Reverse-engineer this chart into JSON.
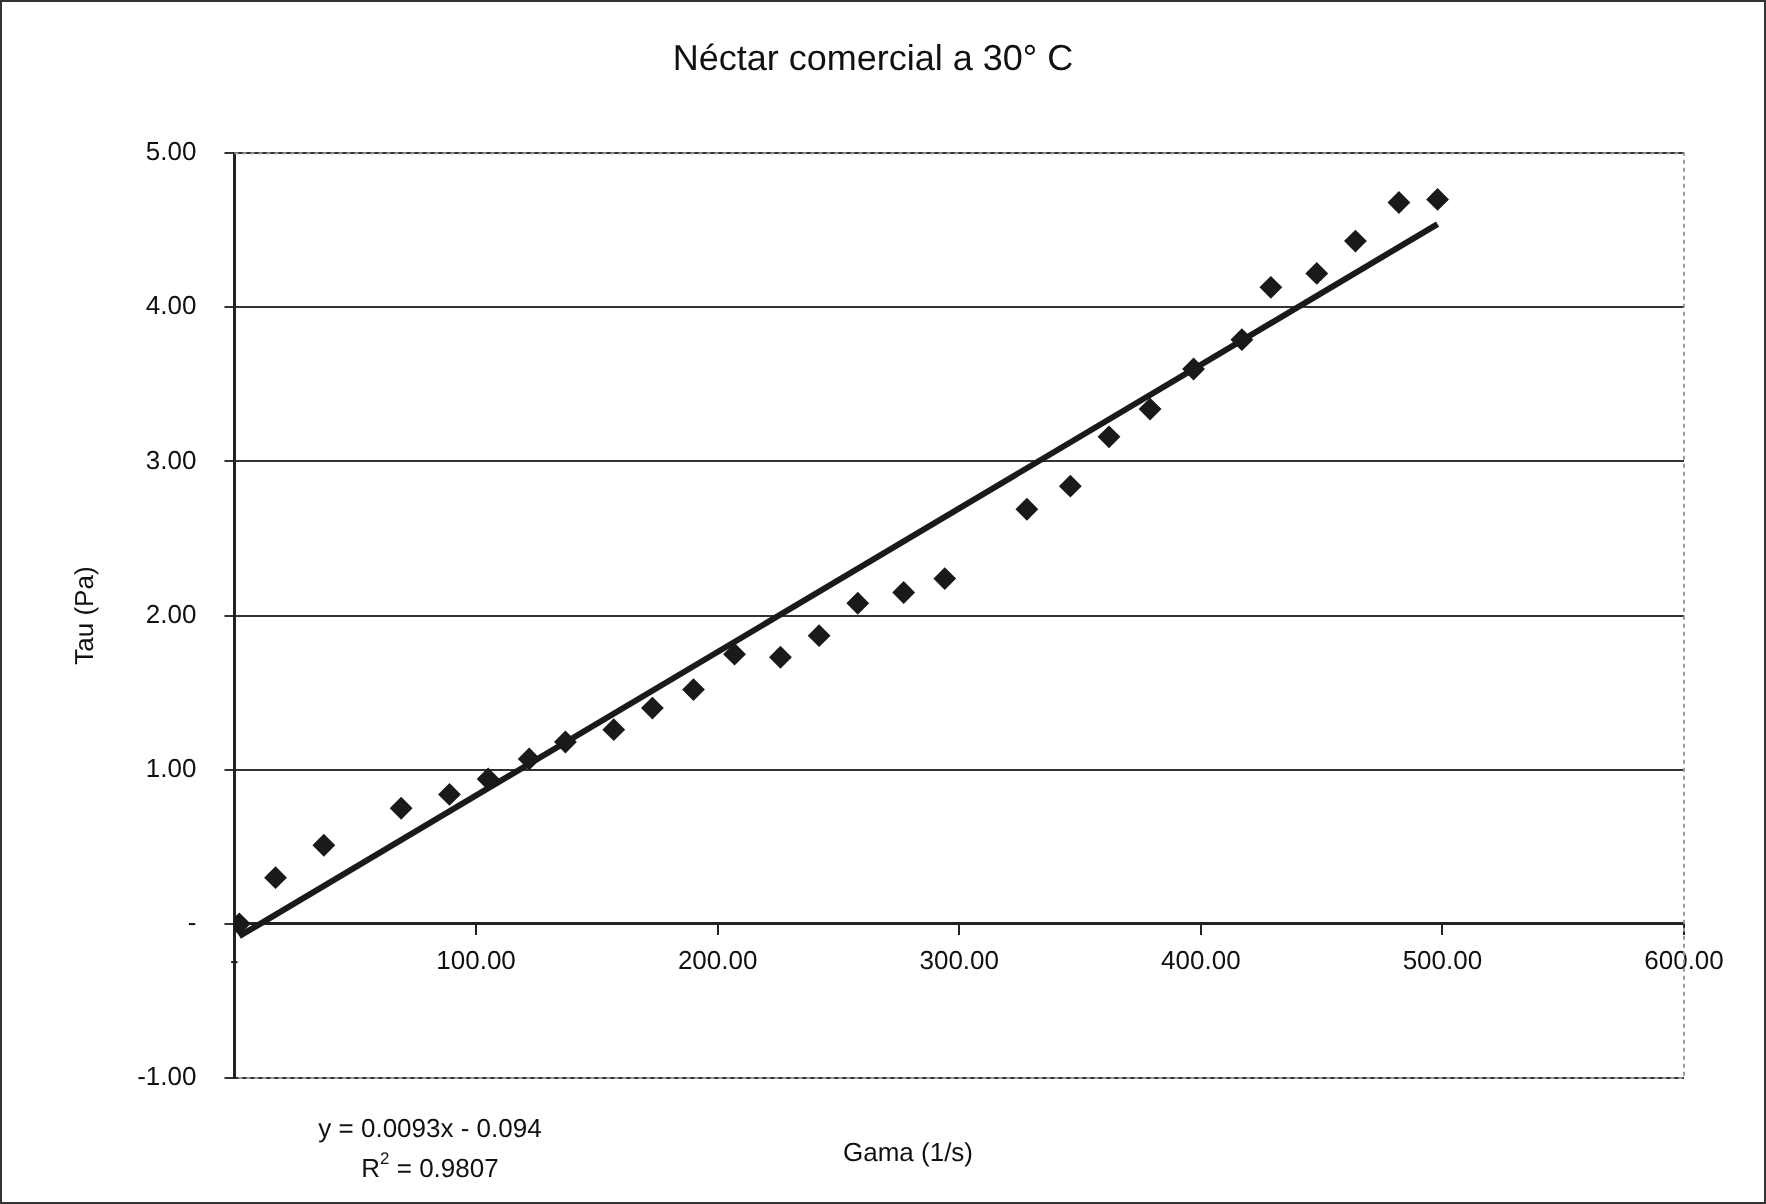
{
  "chart_data": {
    "type": "scatter",
    "title": "Néctar comercial a 30° C",
    "xlabel": "Gama (1/s)",
    "ylabel": "Tau (Pa)",
    "xlim": [
      0,
      600
    ],
    "ylim": [
      -1,
      5
    ],
    "xticks": [
      {
        "value": 0,
        "label": "-"
      },
      {
        "value": 100,
        "label": "100.00"
      },
      {
        "value": 200,
        "label": "200.00"
      },
      {
        "value": 300,
        "label": "300.00"
      },
      {
        "value": 400,
        "label": "400.00"
      },
      {
        "value": 500,
        "label": "500.00"
      },
      {
        "value": 600,
        "label": "600.00"
      }
    ],
    "yticks": [
      {
        "value": -1,
        "label": "-1.00"
      },
      {
        "value": 0,
        "label": "-"
      },
      {
        "value": 1,
        "label": "1.00"
      },
      {
        "value": 2,
        "label": "2.00"
      },
      {
        "value": 3,
        "label": "3.00"
      },
      {
        "value": 4,
        "label": "4.00"
      },
      {
        "value": 5,
        "label": "5.00"
      }
    ],
    "grid": "y",
    "legend": false,
    "marker": "diamond",
    "annotations": [
      "y = 0.0093x - 0.094",
      "R$^{2}$ = 0.9807"
    ],
    "series": [
      {
        "type": "scatter",
        "color": "#1a1a1a",
        "x": [
          2,
          17,
          37,
          69,
          89,
          105,
          122,
          137,
          157,
          173,
          190,
          207,
          226,
          242,
          258,
          277,
          294,
          328,
          346,
          362,
          379,
          397,
          417,
          429,
          448,
          464,
          482,
          498
        ],
        "values": [
          0,
          0.3,
          0.51,
          0.75,
          0.84,
          0.94,
          1.07,
          1.18,
          1.26,
          1.4,
          1.52,
          1.75,
          1.73,
          1.87,
          2.08,
          2.15,
          2.24,
          2.69,
          2.84,
          3.16,
          3.34,
          3.6,
          3.79,
          4.13,
          4.22,
          4.43,
          4.68,
          4.7
        ]
      },
      {
        "type": "line",
        "color": "#1a1a1a",
        "marker": "none",
        "x": [
          2,
          498
        ],
        "values": [
          -0.08,
          4.54
        ]
      }
    ]
  }
}
